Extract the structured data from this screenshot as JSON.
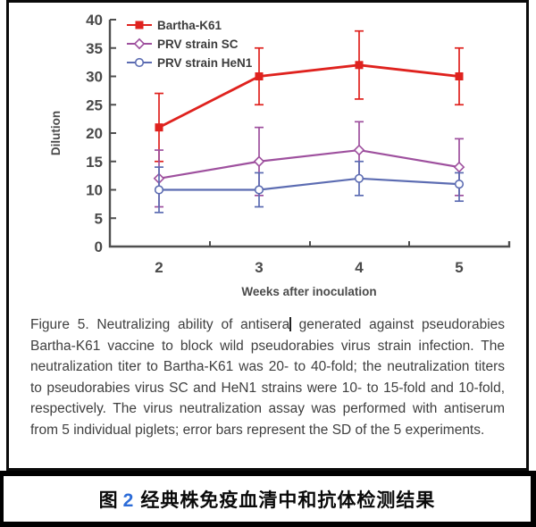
{
  "chart_data": {
    "type": "line",
    "title": "",
    "xlabel": "Weeks after inoculation",
    "ylabel": "Dilution",
    "categories": [
      2,
      3,
      4,
      5
    ],
    "ylim": [
      0,
      40
    ],
    "yticks": [
      0,
      5,
      10,
      15,
      20,
      25,
      30,
      35,
      40
    ],
    "grid": false,
    "legend_position": "top-left inside",
    "series": [
      {
        "name": "Bartha-K61",
        "color": "#df221e",
        "marker": "filled-square",
        "values": [
          21,
          30,
          32,
          30
        ],
        "error_upper": [
          27,
          35,
          38,
          35
        ],
        "error_lower": [
          15,
          25,
          26,
          25
        ]
      },
      {
        "name": "PRV strain SC",
        "color": "#9e509e",
        "marker": "open-diamond",
        "values": [
          12,
          15,
          17,
          14
        ],
        "error_upper": [
          17,
          21,
          22,
          19
        ],
        "error_lower": [
          7,
          9,
          12,
          9
        ]
      },
      {
        "name": "PRV strain HeN1",
        "color": "#5c6cb2",
        "marker": "open-circle",
        "values": [
          10,
          10,
          12,
          11
        ],
        "error_upper": [
          14,
          13,
          15,
          13
        ],
        "error_lower": [
          6,
          7,
          9,
          8
        ]
      }
    ]
  },
  "figure": {
    "caption_before_cursor": "Figure 5. Neutralizing ability of antisera",
    "caption_after_cursor": " generated against pseudorabies Bartha-K61 vaccine to block wild pseudorabies virus strain infection. The neutralization titer to Bartha-K61 was 20- to 40-fold; the neutralization titers to pseudorabies virus SC and HeN1 strains were 10- to 15-fold and 10-fold, respectively. The virus neutralization assay was performed with antiserum from 5 individual piglets; error bars represent the SD of the 5 experiments.",
    "caption_cn": {
      "label": "图",
      "number": "2",
      "number_color": "#2c6cd8",
      "text": "经典株免疫血清中和抗体检测结果"
    }
  }
}
